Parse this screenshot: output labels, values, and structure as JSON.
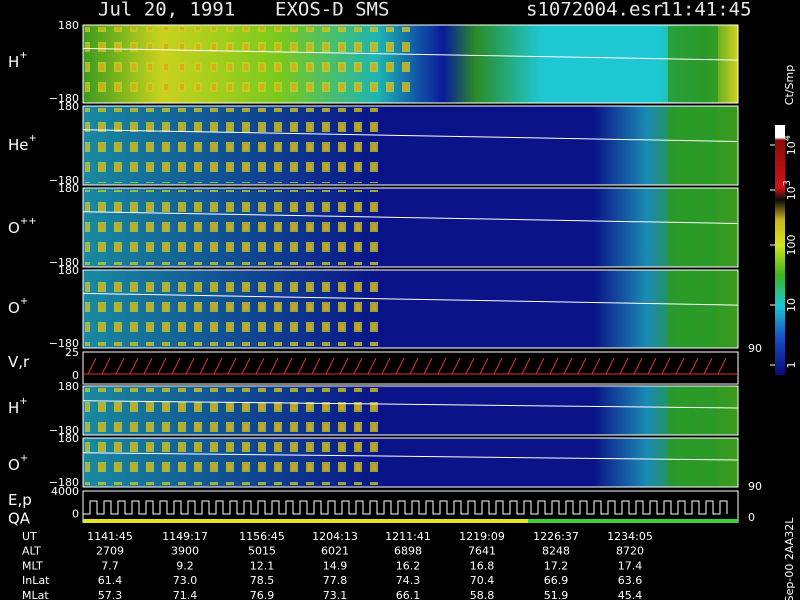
{
  "header": {
    "date": "Jul 20, 1991",
    "instrument": "EXOS-D SMS",
    "file": "s1072004.esr",
    "time": "11:41:45"
  },
  "panels": [
    {
      "label": "H",
      "sup": "+",
      "top": "180",
      "bottom": "−180"
    },
    {
      "label": "He",
      "sup": "+",
      "top": "180",
      "bottom": "−180"
    },
    {
      "label": "O",
      "sup": "++",
      "top": "180",
      "bottom": "−180"
    },
    {
      "label": "O",
      "sup": "+",
      "top": "180",
      "bottom": "−180"
    },
    {
      "label": "V,r",
      "top": "25",
      "bottom": "0",
      "right": "90"
    },
    {
      "label": "H",
      "sup": "+",
      "top": "180",
      "bottom": "−180"
    },
    {
      "label": "O",
      "sup": "+",
      "top": "180",
      "bottom": "−180",
      "right": "90"
    },
    {
      "label": "E,p",
      "label2": "QA",
      "top": "4000",
      "bottom": "0",
      "right": "0"
    }
  ],
  "colorbar": {
    "title": "Ct/Smp",
    "labels": [
      {
        "base": "10",
        "exp": "4"
      },
      {
        "base": "10",
        "exp": "3"
      },
      {
        "base": "100"
      },
      {
        "base": "10"
      },
      {
        "base": "1"
      }
    ]
  },
  "footer": {
    "rows": [
      [
        "UT",
        "1141:45",
        "1149:17",
        "1156:45",
        "1204:13",
        "1211:41",
        "1219:09",
        "1226:37",
        "1234:05"
      ],
      [
        "ALT",
        "2709",
        "3900",
        "5015",
        "6021",
        "6898",
        "7641",
        "8248",
        "8720"
      ],
      [
        "MLT",
        "7.7",
        "9.2",
        "12.1",
        "14.9",
        "16.2",
        "16.8",
        "17.2",
        "17.4"
      ],
      [
        "InLat",
        "61.4",
        "73.0",
        "78.5",
        "77.8",
        "74.3",
        "70.4",
        "66.9",
        "63.6"
      ],
      [
        "MLat",
        "57.3",
        "71.4",
        "76.9",
        "73.1",
        "66.1",
        "58.8",
        "51.9",
        "45.4"
      ]
    ]
  },
  "footnote": "Sep-00 2AA32L"
}
